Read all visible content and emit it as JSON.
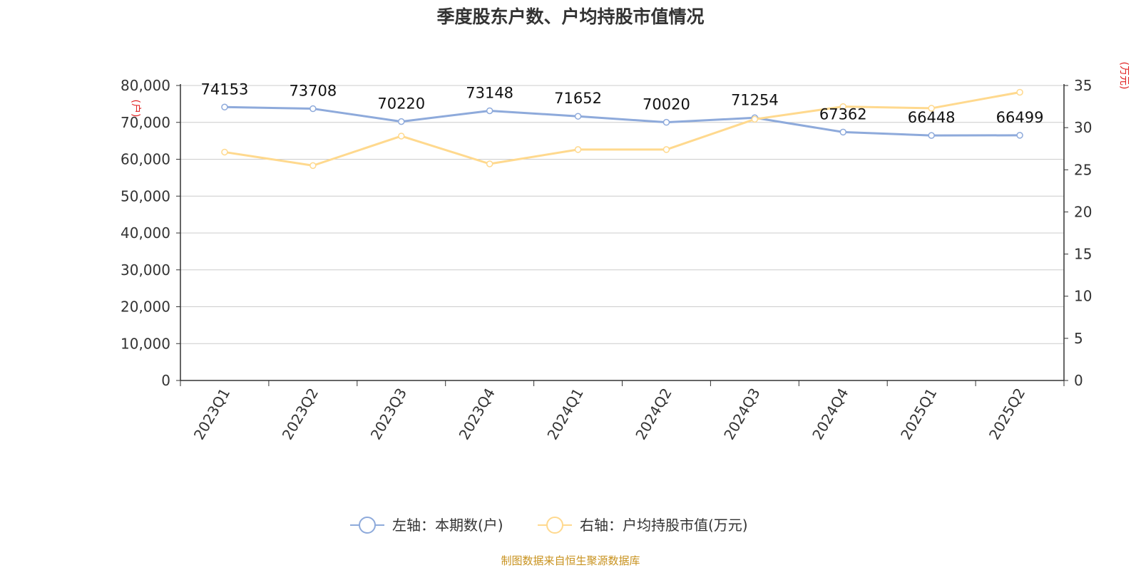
{
  "chart_data": {
    "type": "line",
    "title": "季度股东户数、户均持股市值情况",
    "categories": [
      "2023Q1",
      "2023Q2",
      "2023Q3",
      "2023Q4",
      "2024Q1",
      "2024Q2",
      "2024Q3",
      "2024Q4",
      "2025Q1",
      "2025Q2"
    ],
    "left_axis": {
      "unit_label": "(户)",
      "ylim": [
        0,
        80000
      ],
      "ticks": [
        "0",
        "10,000",
        "20,000",
        "30,000",
        "40,000",
        "50,000",
        "60,000",
        "70,000",
        "80,000"
      ]
    },
    "right_axis": {
      "unit_label": "(万元)",
      "ylim": [
        0,
        35
      ],
      "ticks": [
        "0",
        "5",
        "10",
        "15",
        "20",
        "25",
        "30",
        "35"
      ]
    },
    "series": [
      {
        "name": "左轴：本期数(户)",
        "axis": "left",
        "color": "#8eaadb",
        "values": [
          74153,
          73708,
          70220,
          73148,
          71652,
          70020,
          71254,
          67362,
          66448,
          66499
        ],
        "labels": [
          "74153",
          "73708",
          "70220",
          "73148",
          "71652",
          "70020",
          "71254",
          "67362",
          "66448",
          "66499"
        ]
      },
      {
        "name": "右轴：户均持股市值(万元)",
        "axis": "right",
        "color": "#ffd98e",
        "values": [
          27.1,
          25.5,
          29.0,
          25.7,
          27.4,
          27.4,
          31.0,
          32.5,
          32.3,
          34.2
        ]
      }
    ],
    "grid": true,
    "legend_position": "bottom-center",
    "source": "制图数据来自恒生聚源数据库",
    "source_color": "#c8921e"
  }
}
